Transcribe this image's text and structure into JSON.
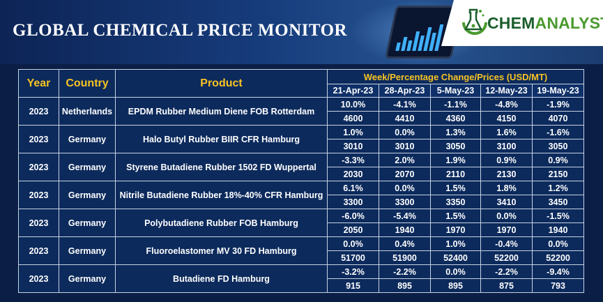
{
  "header": {
    "title": "GLOBAL CHEMICAL PRICE MONITOR",
    "logo": {
      "part1": "CHEM",
      "part2": "ANALYST"
    }
  },
  "table": {
    "headers": {
      "year": "Year",
      "country": "Country",
      "product": "Product",
      "week_group": "Week/Percentage Change/Prices (USD/MT)"
    },
    "dates": [
      "21-Apr-23",
      "28-Apr-23",
      "5-May-23",
      "12-May-23",
      "19-May-23"
    ],
    "rows": [
      {
        "year": "2023",
        "country": "Netherlands",
        "product": "EPDM Rubber Medium Diene FOB Rotterdam",
        "pct": [
          "10.0%",
          "-4.1%",
          "-1.1%",
          "-4.8%",
          "-1.9%"
        ],
        "price": [
          "4600",
          "4410",
          "4360",
          "4150",
          "4070"
        ]
      },
      {
        "year": "2023",
        "country": "Germany",
        "product": "Halo Butyl Rubber BIIR CFR Hamburg",
        "pct": [
          "1.0%",
          "0.0%",
          "1.3%",
          "1.6%",
          "-1.6%"
        ],
        "price": [
          "3010",
          "3010",
          "3050",
          "3100",
          "3050"
        ]
      },
      {
        "year": "2023",
        "country": "Germany",
        "product": "Styrene Butadiene Rubber 1502 FD Wuppertal",
        "pct": [
          "-3.3%",
          "2.0%",
          "1.9%",
          "0.9%",
          "0.9%"
        ],
        "price": [
          "2030",
          "2070",
          "2110",
          "2130",
          "2150"
        ]
      },
      {
        "year": "2023",
        "country": "Germany",
        "product": "Nitrile Butadiene Rubber 18%-40% CFR Hamburg",
        "pct": [
          "6.1%",
          "0.0%",
          "1.5%",
          "1.8%",
          "1.2%"
        ],
        "price": [
          "3300",
          "3300",
          "3350",
          "3410",
          "3450"
        ]
      },
      {
        "year": "2023",
        "country": "Germany",
        "product": "Polybutadiene Rubber FOB Hamburg",
        "pct": [
          "-6.0%",
          "-5.4%",
          "1.5%",
          "0.0%",
          "-1.5%"
        ],
        "price": [
          "2050",
          "1940",
          "1970",
          "1970",
          "1940"
        ]
      },
      {
        "year": "2023",
        "country": "Germany",
        "product": "Fluoroelastomer MV 30 FD Hamburg",
        "pct": [
          "0.0%",
          "0.4%",
          "1.0%",
          "-0.4%",
          "0.0%"
        ],
        "price": [
          "51700",
          "51900",
          "52400",
          "52200",
          "52200"
        ]
      },
      {
        "year": "2023",
        "country": "Germany",
        "product": "Butadiene FD Hamburg",
        "pct": [
          "-3.2%",
          "-2.2%",
          "0.0%",
          "-2.2%",
          "-9.4%"
        ],
        "price": [
          "915",
          "895",
          "895",
          "875",
          "793"
        ]
      }
    ]
  }
}
